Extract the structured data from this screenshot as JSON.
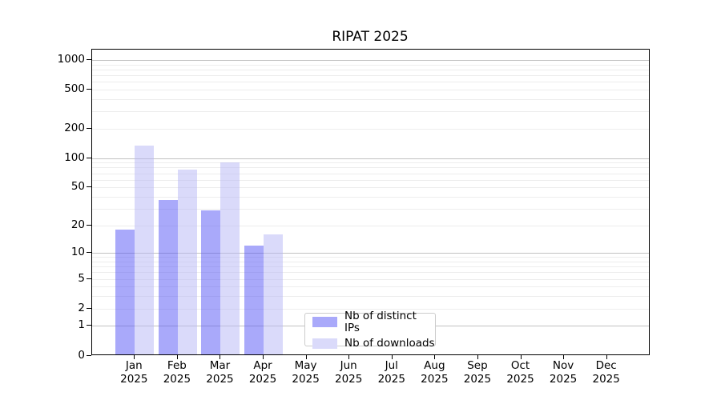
{
  "title": "RIPAT 2025",
  "chart_data": {
    "type": "bar",
    "title": "RIPAT 2025",
    "categories": [
      "Jan 2025",
      "Feb 2025",
      "Mar 2025",
      "Apr 2025",
      "May 2025",
      "Jun 2025",
      "Jul 2025",
      "Aug 2025",
      "Sep 2025",
      "Oct 2025",
      "Nov 2025",
      "Dec 2025"
    ],
    "series": [
      {
        "name": "Nb of distinct IPs",
        "color": "#a9a9fa",
        "values": [
          18,
          37,
          29,
          12,
          null,
          null,
          null,
          null,
          null,
          null,
          null,
          null
        ]
      },
      {
        "name": "Nb of downloads",
        "color": "#dadafa",
        "values": [
          135,
          76,
          90,
          16,
          null,
          null,
          null,
          null,
          null,
          null,
          null,
          null
        ]
      }
    ],
    "xlabel": "",
    "ylabel": "",
    "yscale": "log10(value+1)",
    "ytick_labels": [
      0,
      1,
      2,
      5,
      10,
      20,
      50,
      100,
      200,
      500,
      1000
    ],
    "ylim": [
      0,
      1275
    ],
    "grid": "horizontal major+minor",
    "legend_position": "lower center-left inside plot"
  },
  "legend": {
    "item_ips": "Nb of distinct IPs",
    "item_downloads": "Nb of downloads"
  },
  "colors": {
    "bar_ips": "#a9a9fa",
    "bar_downloads": "#dadafa",
    "bar_ips_rgba": "rgba(83,83,245,0.5)",
    "bar_downloads_rgba": "rgba(181,181,245,0.5)",
    "grid_major": "#c2c2c2",
    "grid_minor": "#ededed"
  }
}
